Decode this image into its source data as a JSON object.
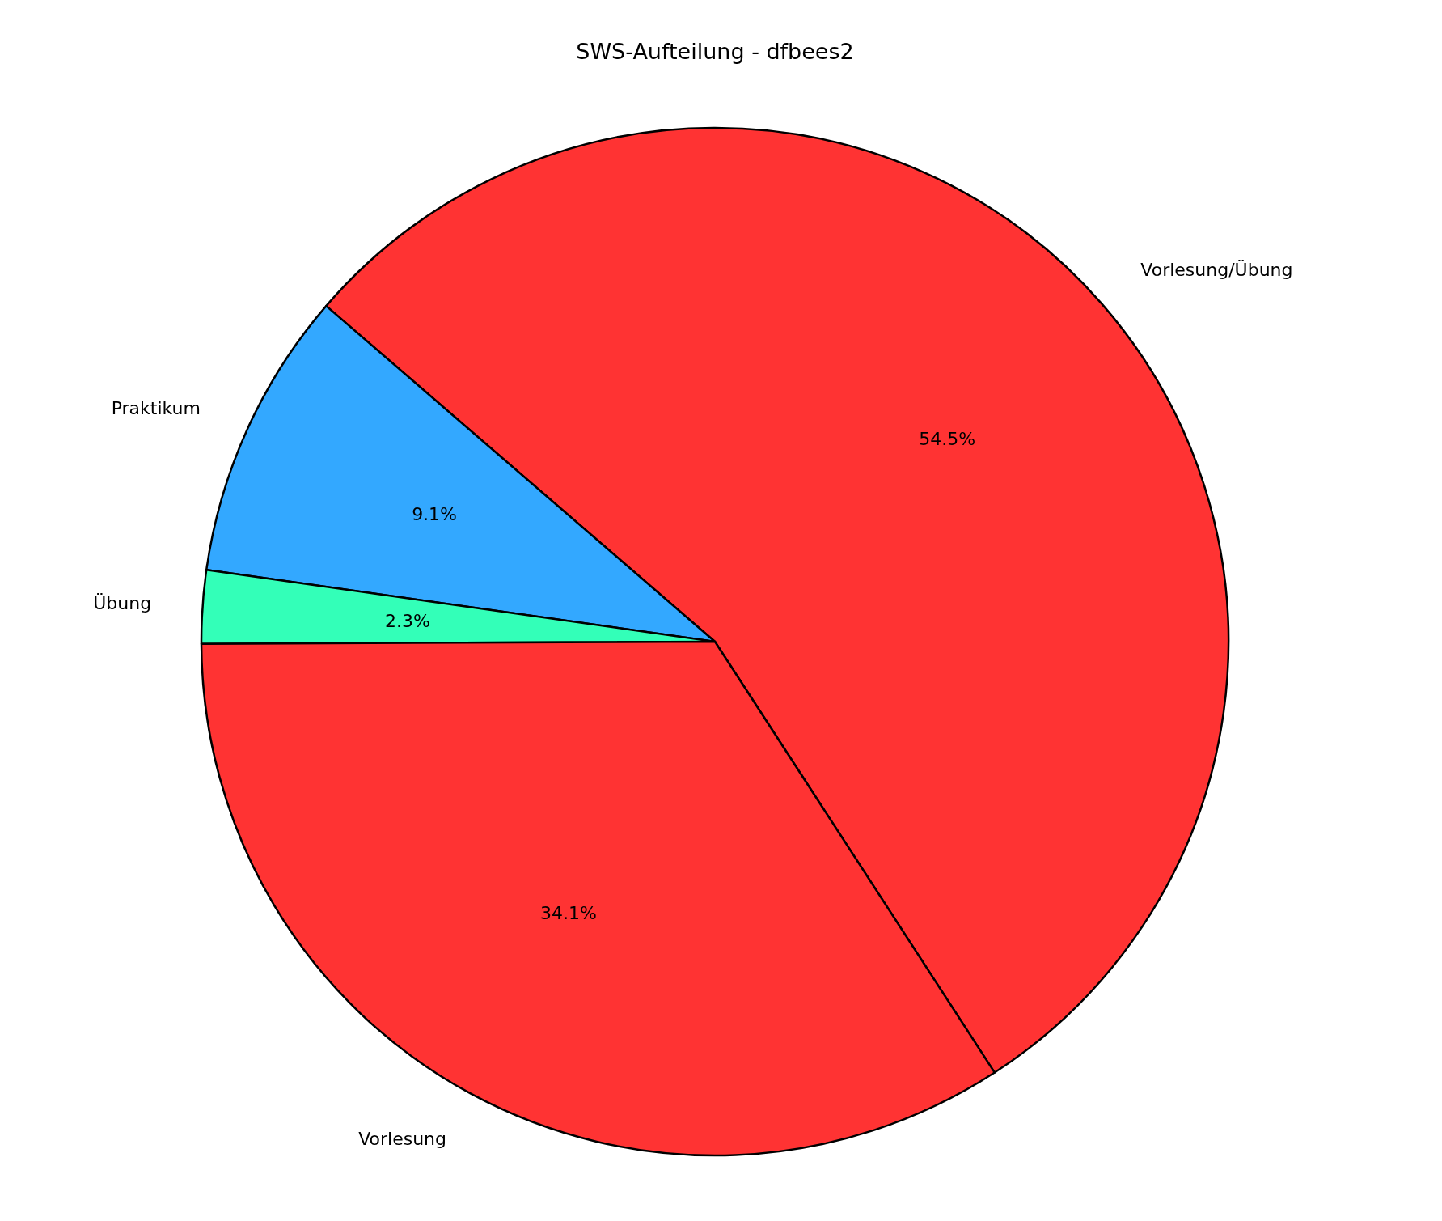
{
  "chart_data": {
    "type": "pie",
    "title": "SWS-Aufteilung - dfbees2",
    "categories": [
      "Vorlesung/Übung",
      "Praktikum",
      "Übung",
      "Vorlesung"
    ],
    "values": [
      54.5,
      9.1,
      2.3,
      34.1
    ],
    "colors": [
      "#ff3333",
      "#33a8ff",
      "#33ffb8",
      "#ff3333"
    ],
    "value_labels": [
      "54.5%",
      "9.1%",
      "2.3%",
      "34.1%"
    ]
  }
}
